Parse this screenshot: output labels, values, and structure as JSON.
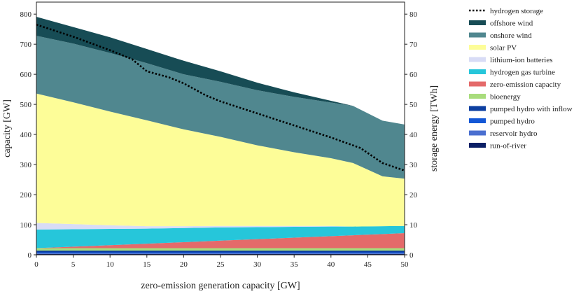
{
  "chart_data": {
    "type": "area",
    "stacked": true,
    "xlabel": "zero-emission generation capacity [GW]",
    "ylabel": "capacity [GW]",
    "y2label": "storage energy [TWh]",
    "xlim": [
      0,
      50
    ],
    "ylim": [
      0,
      840
    ],
    "y2lim": [
      0,
      84
    ],
    "x_ticks": [
      0,
      5,
      10,
      15,
      20,
      25,
      30,
      35,
      40,
      45,
      50
    ],
    "y_ticks": [
      0,
      100,
      200,
      300,
      400,
      500,
      600,
      700,
      800
    ],
    "y2_ticks": [
      0,
      10,
      20,
      30,
      40,
      50,
      60,
      70,
      80
    ],
    "grid": false,
    "legend_position": "right",
    "x": [
      0,
      5,
      10,
      15,
      20,
      25,
      30,
      35,
      40,
      43,
      47,
      50
    ],
    "series": [
      {
        "name": "run-of-river",
        "color": "#0b1f66",
        "values": [
          3,
          3,
          3,
          3,
          3,
          3,
          3,
          3,
          3,
          3,
          3,
          3
        ]
      },
      {
        "name": "reservoir hydro",
        "color": "#4a6fd0",
        "values": [
          2,
          2,
          2,
          2,
          2,
          2,
          2,
          2,
          2,
          2,
          2,
          2
        ]
      },
      {
        "name": "pumped hydro",
        "color": "#1357d6",
        "values": [
          3,
          3,
          3,
          3,
          3,
          3,
          3,
          3,
          3,
          3,
          3,
          3
        ]
      },
      {
        "name": "pumped hydro with inflow",
        "color": "#0d3fa0",
        "values": [
          6,
          6,
          6,
          6,
          6,
          6,
          6,
          6,
          6,
          6,
          6,
          6
        ]
      },
      {
        "name": "bioenergy",
        "color": "#a8dc7c",
        "values": [
          8,
          8,
          8,
          8,
          8,
          8,
          8,
          8,
          8,
          8,
          8,
          8
        ]
      },
      {
        "name": "zero-emission capacity",
        "color": "#e46a6a",
        "values": [
          0,
          5,
          10,
          15,
          20,
          25,
          30,
          35,
          40,
          43,
          47,
          50
        ]
      },
      {
        "name": "hydrogen gas turbine",
        "color": "#26c6da",
        "values": [
          62,
          58,
          54,
          50,
          47,
          44,
          40,
          36,
          32,
          29,
          26,
          24
        ]
      },
      {
        "name": "lithium-ion batteries",
        "color": "#d8dcf6",
        "values": [
          22,
          17,
          12,
          8,
          6,
          5,
          4,
          3,
          2,
          0,
          0,
          0
        ]
      },
      {
        "name": "solar PV",
        "color": "#fdfd98",
        "values": [
          430,
          405,
          378,
          352,
          322,
          296,
          268,
          245,
          225,
          211,
          166,
          157
        ]
      },
      {
        "name": "onshore wind",
        "color": "#50878f",
        "values": [
          192,
          195,
          195,
          190,
          183,
          183,
          183,
          184,
          185,
          190,
          185,
          180
        ]
      },
      {
        "name": "offshore wind",
        "color": "#174c55",
        "values": [
          63,
          55,
          52,
          47,
          45,
          35,
          25,
          15,
          6,
          0,
          0,
          0
        ]
      }
    ],
    "overlay": {
      "name": "hydrogen storage",
      "axis": "y2",
      "style": "dotted",
      "color": "#000000",
      "x": [
        0,
        5,
        10,
        13,
        15,
        18,
        20,
        23,
        25,
        30,
        35,
        40,
        44,
        47,
        50
      ],
      "values": [
        76.5,
        72.5,
        68,
        65,
        61,
        59,
        57,
        53,
        51,
        47,
        43,
        39,
        35.5,
        30.5,
        28
      ]
    },
    "legend_order": [
      "hydrogen storage",
      "offshore wind",
      "onshore wind",
      "solar PV",
      "lithium-ion batteries",
      "hydrogen gas turbine",
      "zero-emission capacity",
      "bioenergy",
      "pumped hydro with inflow",
      "pumped hydro",
      "reservoir hydro",
      "run-of-river"
    ]
  }
}
